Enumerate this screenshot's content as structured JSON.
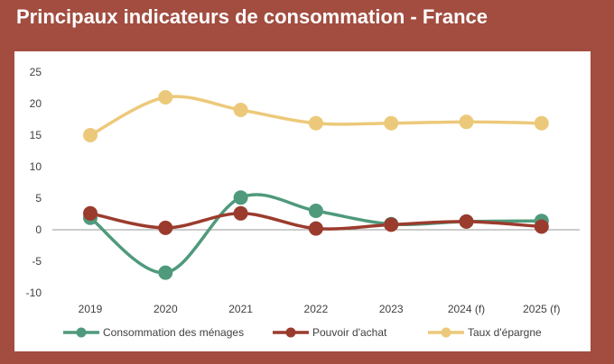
{
  "page": {
    "title": "Principaux indicateurs de consommation - France"
  },
  "colors": {
    "background": "#a24d40",
    "panel": "#ffffff",
    "zero_line": "#9a9a9a"
  },
  "chart_data": {
    "type": "line",
    "title": "",
    "xlabel": "",
    "ylabel": "",
    "categories": [
      "2019",
      "2020",
      "2021",
      "2022",
      "2023",
      "2024 (f)",
      "2025 (f)"
    ],
    "ylim": [
      -10,
      25
    ],
    "yticks": [
      25,
      20,
      15,
      10,
      5,
      0,
      -5,
      -10
    ],
    "grid": false,
    "smooth": true,
    "legend_position": "bottom",
    "series": [
      {
        "name": "Consommation des ménages",
        "color": "#4f9a7c",
        "values": [
          1.9,
          -6.8,
          5.1,
          3.0,
          0.9,
          1.3,
          1.4
        ]
      },
      {
        "name": "Pouvoir d'achat",
        "color": "#9b3b2d",
        "values": [
          2.6,
          0.3,
          2.6,
          0.2,
          0.8,
          1.3,
          0.5
        ]
      },
      {
        "name": "Taux d'épargne",
        "color": "#ecc97a",
        "values": [
          15.0,
          21.0,
          19.0,
          16.9,
          16.9,
          17.1,
          16.9
        ]
      }
    ]
  }
}
